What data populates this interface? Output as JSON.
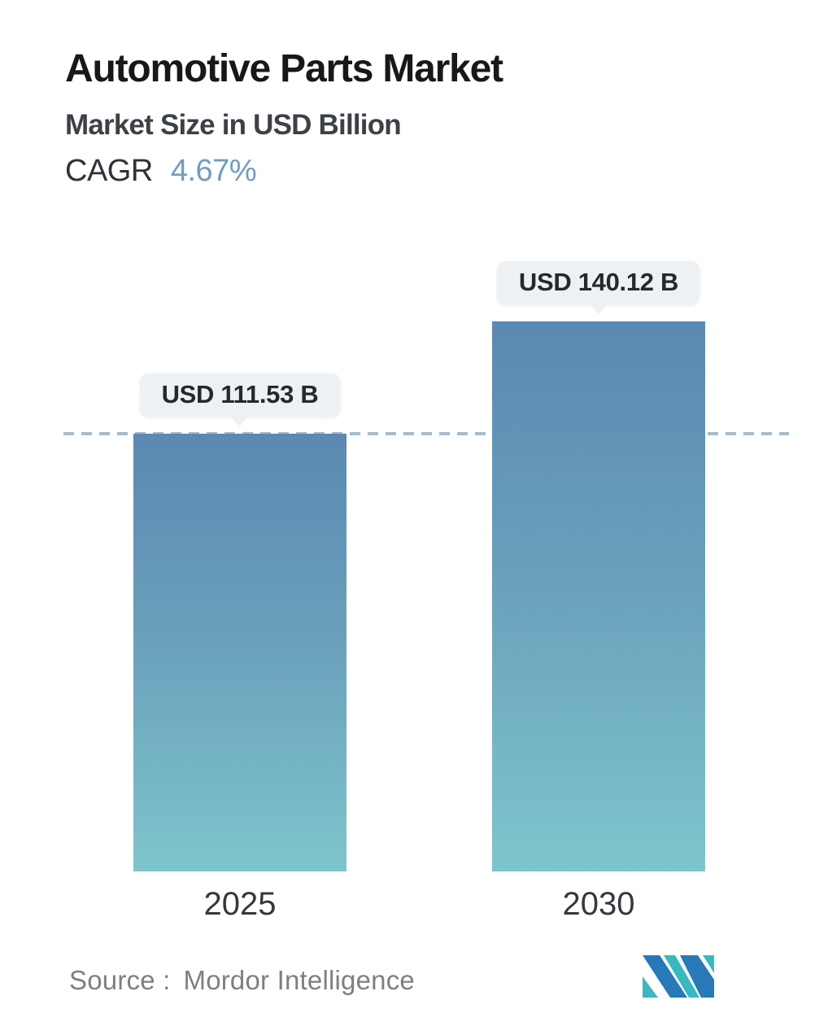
{
  "header": {
    "title": "Automotive Parts Market",
    "subtitle": "Market Size in USD Billion",
    "cagr_label": "CAGR",
    "cagr_value": "4.67%"
  },
  "chart_data": {
    "type": "bar",
    "title": "Automotive Parts Market",
    "subtitle": "Market Size in USD Billion",
    "unit": "USD Billion",
    "cagr_percent": 4.67,
    "categories": [
      "2025",
      "2030"
    ],
    "values": [
      111.53,
      140.12
    ],
    "value_labels": [
      "USD 111.53 B",
      "USD 140.12 B"
    ],
    "xlabel": "",
    "ylabel": "",
    "axes_shown": false,
    "gridlines": false,
    "legend": "none",
    "reference_line": {
      "style": "dashed",
      "at_value": 111.53,
      "color": "#a7bbca"
    }
  },
  "bars": [
    {
      "category": "2025",
      "value": 111.53,
      "value_label": "USD 111.53 B"
    },
    {
      "category": "2030",
      "value": 140.12,
      "value_label": "USD 140.12 B"
    }
  ],
  "footer": {
    "source_label": "Source :",
    "source_name": "Mordor Intelligence",
    "logo": "mordor-intelligence-logo"
  },
  "colors": {
    "background": "#ffffff",
    "title_text": "#17181a",
    "subtitle_text": "#3c4147",
    "cagr_value_text": "#6f9cc5",
    "bar_gradient_top": "#5b89b2",
    "bar_gradient_bottom": "#7ec5cc",
    "dashed_line": "#a7bbca",
    "badge_background": "#eef1f4",
    "badge_text": "#24292e",
    "year_text": "#35393d",
    "source_text": "#7d8083",
    "logo_blue": "#2779b7",
    "logo_teal": "#38b8c0"
  }
}
